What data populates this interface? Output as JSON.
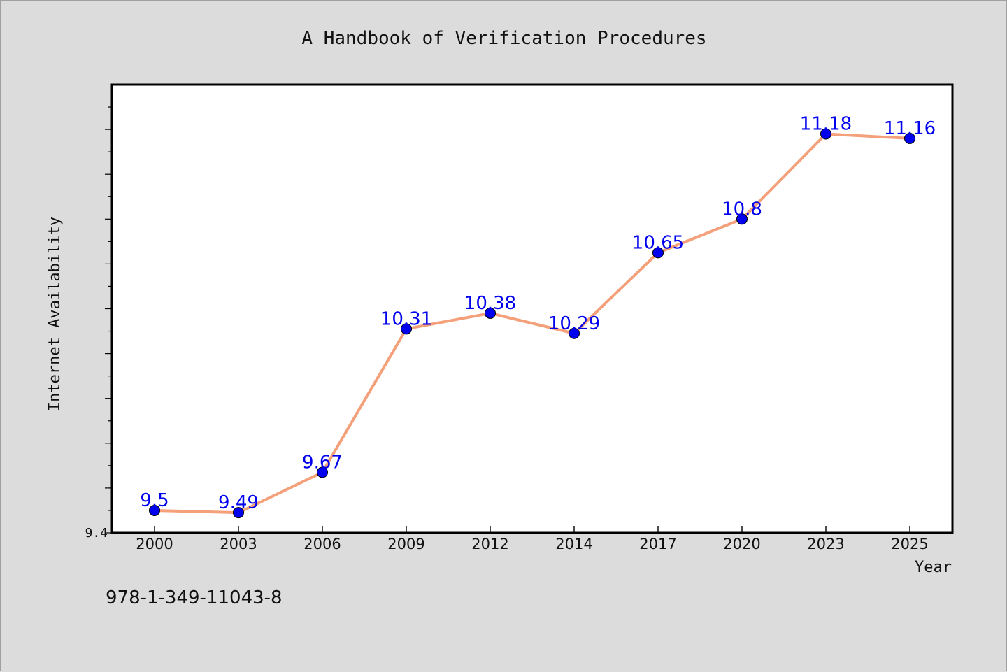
{
  "chart_data": {
    "type": "line",
    "title": "A Handbook of Verification Procedures",
    "xlabel": "Year",
    "ylabel": "Internet Availability",
    "categories": [
      "2000",
      "2003",
      "2006",
      "2009",
      "2012",
      "2014",
      "2017",
      "2020",
      "2023",
      "2025"
    ],
    "series": [
      {
        "values": [
          9.5,
          9.49,
          9.67,
          10.31,
          10.38,
          10.29,
          10.65,
          10.8,
          11.18,
          11.16
        ]
      }
    ],
    "data_labels": [
      "9.5",
      "9.49",
      "9.67",
      "10.31",
      "10.38",
      "10.29",
      "10.65",
      "10.8",
      "11.18",
      "11.16"
    ],
    "ylim": [
      9.4,
      11.4
    ],
    "y_tick_labels": [
      "9.4"
    ],
    "grid": false,
    "line_color": "#f4a07a",
    "marker_color": "#0000ee",
    "label_color": "#0000ee"
  },
  "footer": {
    "isbn": "978-1-349-11043-8"
  }
}
